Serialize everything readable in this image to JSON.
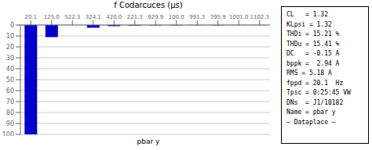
{
  "chart_data": {
    "type": "bar",
    "title": "f Codarcuces (μs)",
    "x_label": "pbar y",
    "categories": [
      "20.1",
      "125.0",
      "522.3",
      "324.1",
      "420.0",
      "221.3",
      "929.9",
      "100.0",
      "991.3",
      "395.9",
      "1001.0",
      "1102.3"
    ],
    "values": [
      100,
      11.1,
      0.0,
      2.5,
      1.0,
      0.5,
      0.3,
      0.4,
      0.2,
      0.3,
      0.1,
      0.1
    ],
    "color": "#0000cc",
    "ylim": [
      100,
      0
    ],
    "yticks": [
      0,
      10,
      20,
      30,
      40,
      50,
      60,
      70,
      80,
      90,
      100
    ],
    "grid": true,
    "annotations": [
      "CL   = 1.32",
      "KLpsi = 1.32",
      "THDi = 15.21 %",
      "THDu = 15.41 %",
      "DC   = -0.15 A",
      "bppk =  2.94 A",
      "RMS = 5.18 A",
      "fppd = 20.1  Hz",
      "Tpsc = 0:25:45 VW",
      "DNs  = J1/10182",
      "Name = pbar y",
      "— Dataplace —"
    ]
  }
}
